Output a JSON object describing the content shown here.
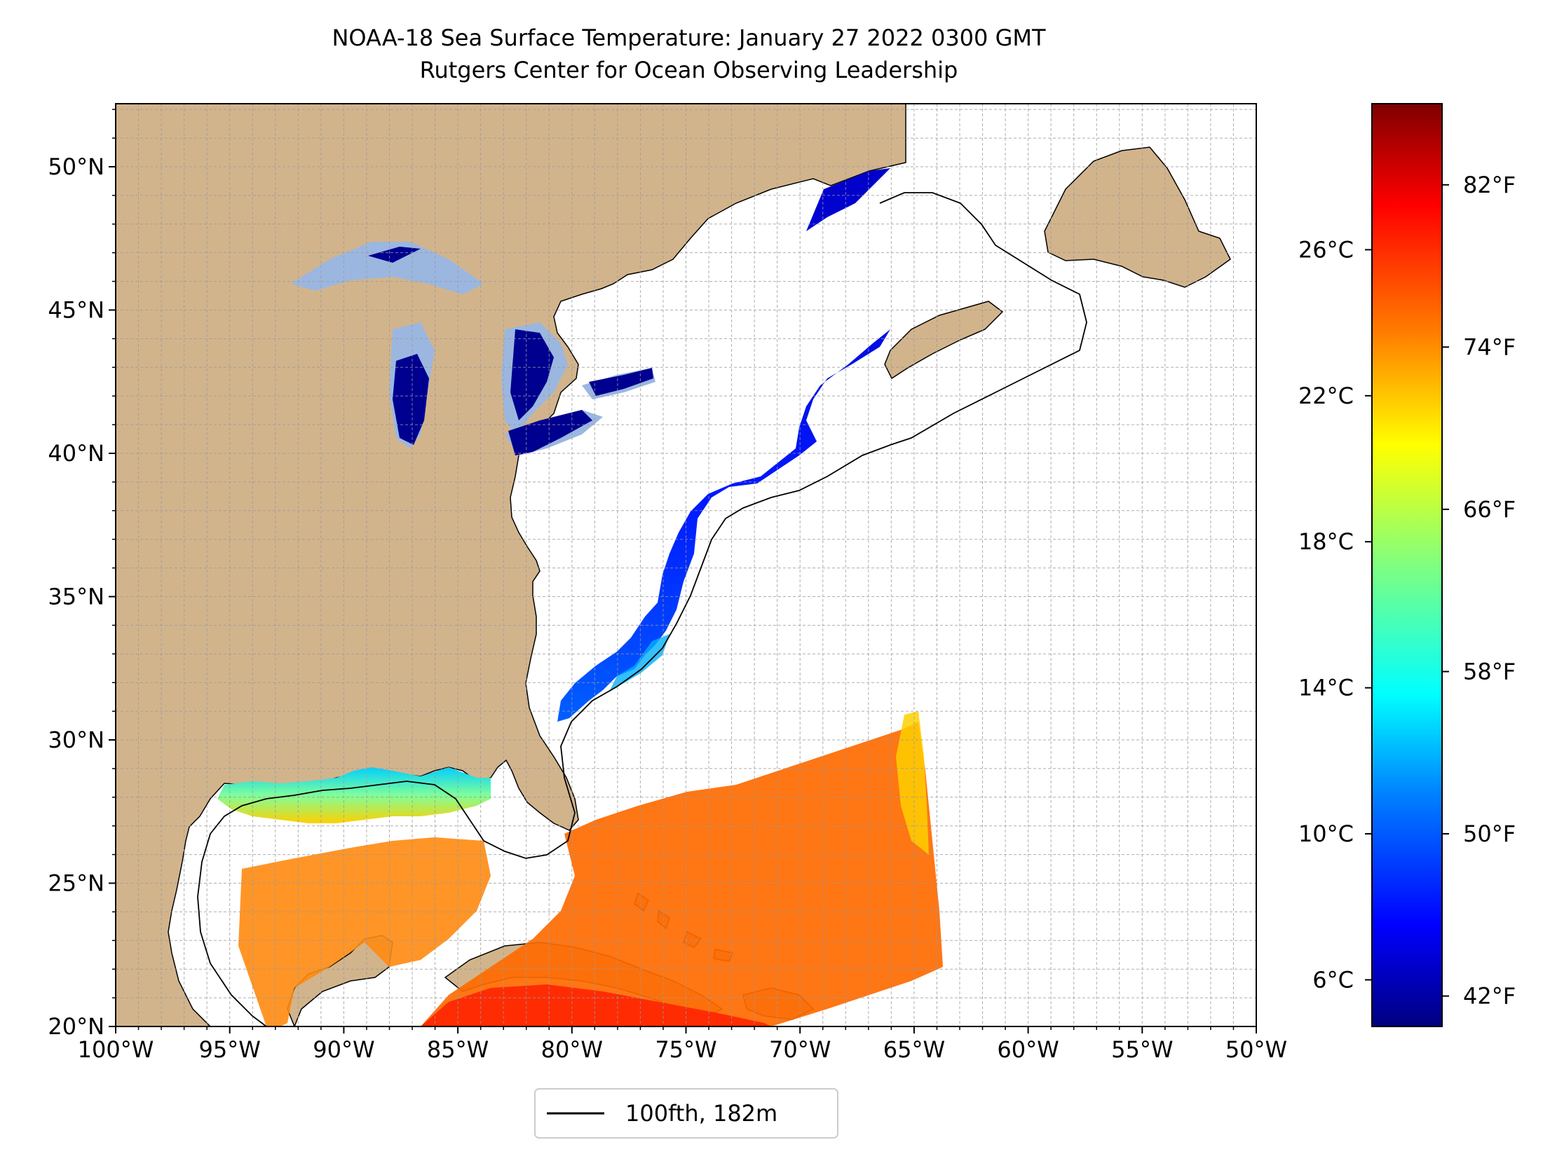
{
  "title": "NOAA-18 Sea Surface Temperature: January 27 2022 0300 GMT",
  "subtitle": "Rutgers Center for Ocean Observing Leadership",
  "map": {
    "lon_range": [
      -100,
      -50
    ],
    "lat_range": [
      20,
      52.2
    ],
    "lon_ticks": [
      "100°W",
      "95°W",
      "90°W",
      "85°W",
      "80°W",
      "75°W",
      "70°W",
      "65°W",
      "60°W",
      "55°W",
      "50°W"
    ],
    "lat_ticks": [
      "20°N",
      "25°N",
      "30°N",
      "35°N",
      "40°N",
      "45°N",
      "50°N"
    ],
    "land_color": "#d2b48c",
    "lake_color": "#9bb7e0",
    "gridlines": true,
    "legend": {
      "label": "100fth, 182m",
      "placement": "bottom-center"
    }
  },
  "colorbar": {
    "colormap": "jet",
    "celsius_ticks": [
      "6°C",
      "10°C",
      "14°C",
      "18°C",
      "22°C",
      "26°C"
    ],
    "fahrenheit_ticks": [
      "42°F",
      "50°F",
      "58°F",
      "66°F",
      "74°F",
      "82°F"
    ],
    "colors": [
      "#00007f",
      "#0000ff",
      "#007fff",
      "#00ffff",
      "#7fff7f",
      "#ffff00",
      "#ff7f00",
      "#ff0000",
      "#7f0000"
    ]
  }
}
